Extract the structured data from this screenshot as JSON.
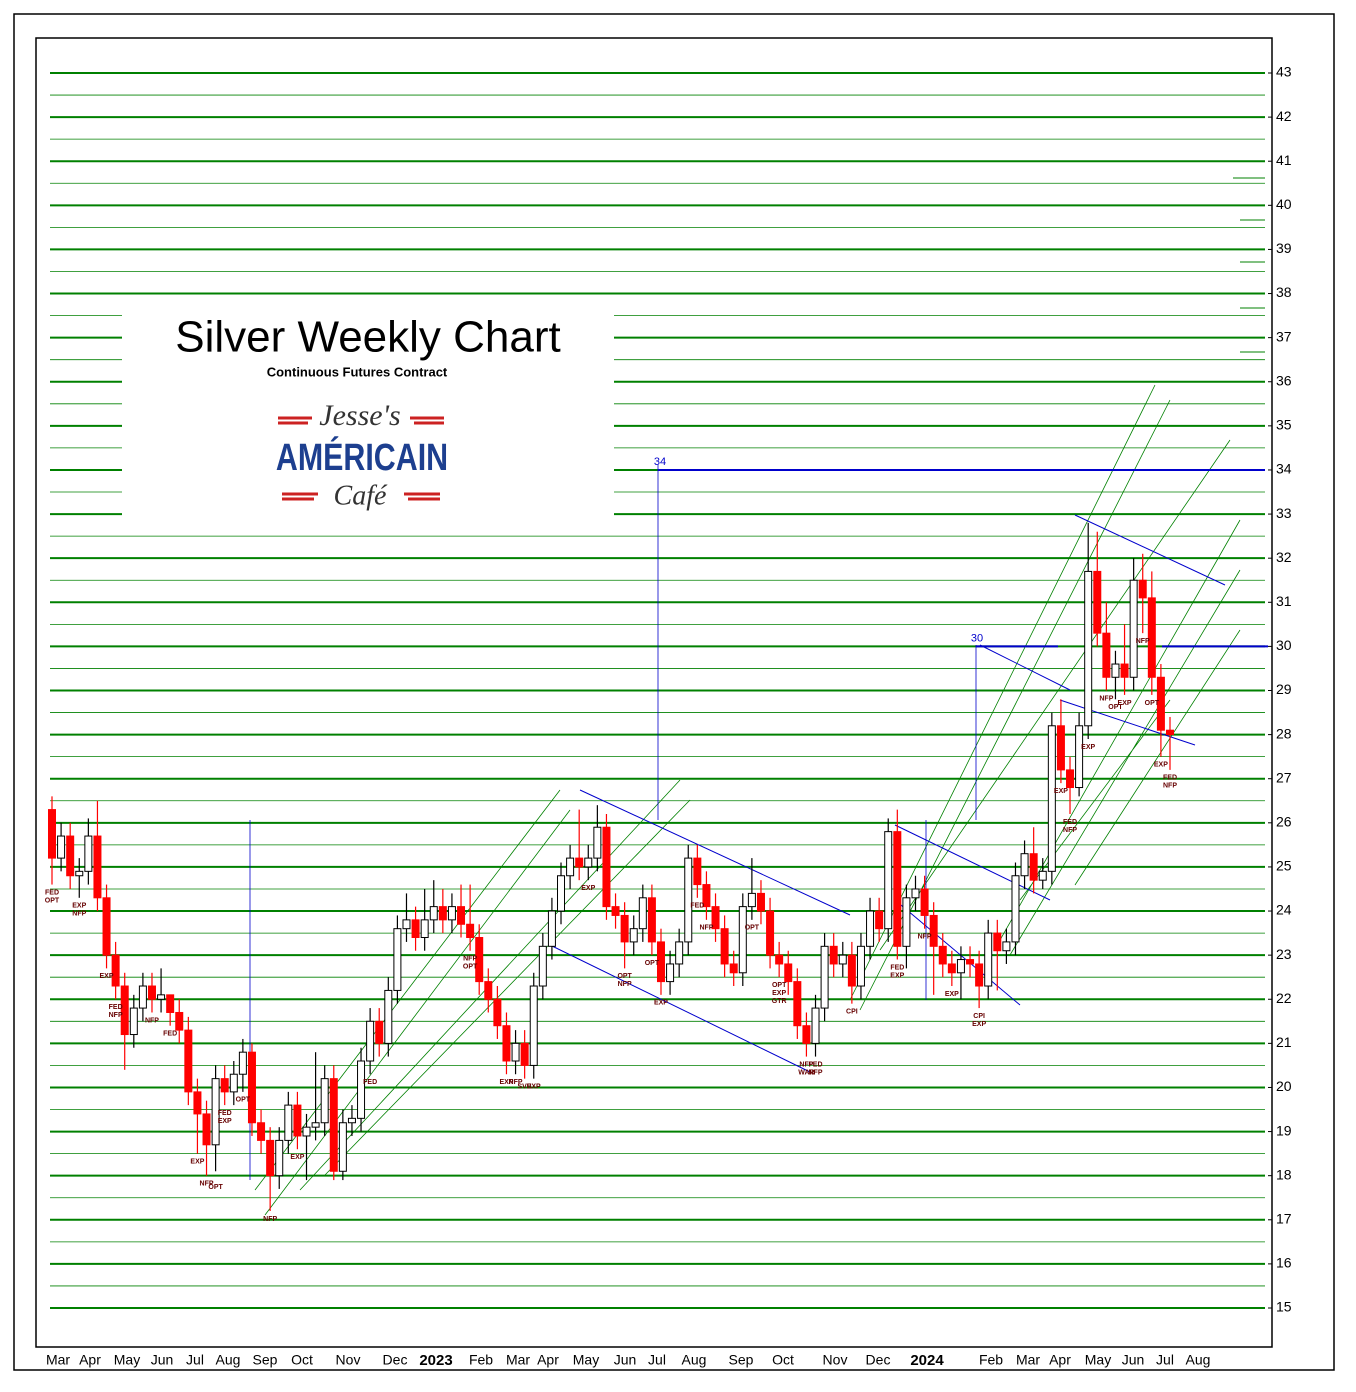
{
  "chart_data": {
    "type": "candlestick",
    "title": "Silver Weekly Chart",
    "subtitle": "Continuous Futures Contract",
    "logo": [
      "Jesse's",
      "AMÉRICAIN",
      "Café"
    ],
    "x_labels": [
      "Mar",
      "Apr",
      "May",
      "Jun",
      "Jul",
      "Aug",
      "Sep",
      "Oct",
      "Nov",
      "Dec",
      "2023",
      "Feb",
      "Mar",
      "Apr",
      "May",
      "Jun",
      "Jul",
      "Aug",
      "Sep",
      "Oct",
      "Nov",
      "Dec",
      "2024",
      "Feb",
      "Mar",
      "Apr",
      "May",
      "Jun",
      "Jul",
      "Aug"
    ],
    "ylim": [
      15,
      43
    ],
    "yticks": [
      15,
      16,
      17,
      18,
      19,
      20,
      21,
      22,
      23,
      24,
      25,
      26,
      27,
      28,
      29,
      30,
      31,
      32,
      33,
      34,
      35,
      36,
      37,
      38,
      39,
      40,
      41,
      42,
      43
    ],
    "grid": true,
    "grid_color": "#008000",
    "up_color": "#ffffff",
    "down_color": "#ff0000",
    "levels": [
      34,
      30
    ],
    "level_color": "#0000cc",
    "open": [
      26.3,
      25.2,
      25.7,
      24.8,
      24.9,
      25.7,
      24.3,
      23.0,
      22.3,
      21.2,
      21.8,
      22.3,
      22.0,
      22.1,
      21.7,
      21.3,
      19.9,
      19.4,
      18.7,
      20.2,
      19.9,
      20.3,
      20.8,
      19.2,
      18.8,
      18.0,
      18.8,
      19.6,
      18.9,
      19.1,
      19.2,
      20.2,
      18.1,
      19.2,
      19.3,
      20.6,
      21.5,
      21.0,
      22.2,
      23.6,
      23.8,
      23.4,
      23.8,
      24.1,
      23.8,
      24.1,
      23.7,
      23.4,
      22.4,
      22.0,
      21.4,
      20.6,
      21.0,
      20.5,
      22.3,
      23.2,
      24.0,
      24.8,
      25.2,
      25.0,
      25.2,
      25.9,
      24.1,
      23.9,
      23.3,
      23.6,
      24.3,
      23.3,
      22.4,
      22.8,
      23.3,
      25.2,
      24.6,
      24.1,
      23.6,
      22.8,
      22.6,
      24.1,
      24.4,
      24.0,
      23.0,
      22.8,
      22.4,
      21.4,
      21.0,
      21.8,
      23.2,
      22.8,
      23.0,
      22.3,
      23.2,
      24.0,
      23.6,
      25.8,
      23.2,
      24.3,
      24.5,
      23.9,
      23.2,
      22.8,
      22.6,
      22.9,
      22.8,
      22.3,
      23.5,
      23.1,
      23.3,
      24.8,
      25.3,
      24.7,
      24.9,
      28.2,
      27.2,
      26.8,
      28.2,
      31.7,
      30.3,
      29.3,
      29.6,
      29.3,
      31.5,
      31.1,
      29.3,
      28.1
    ],
    "high": [
      26.6,
      26.0,
      26.0,
      25.2,
      26.1,
      26.5,
      24.6,
      23.3,
      22.6,
      22.1,
      22.6,
      22.6,
      22.7,
      22.1,
      22.0,
      21.6,
      20.2,
      19.7,
      20.5,
      20.5,
      20.6,
      21.1,
      21.0,
      19.5,
      19.1,
      19.1,
      19.9,
      19.9,
      19.4,
      20.8,
      20.5,
      20.5,
      19.5,
      19.6,
      20.9,
      21.8,
      21.8,
      22.5,
      23.9,
      24.4,
      24.1,
      24.5,
      24.7,
      24.5,
      24.4,
      24.6,
      24.6,
      23.7,
      22.7,
      22.3,
      21.7,
      21.3,
      21.3,
      22.6,
      23.5,
      24.3,
      25.1,
      25.5,
      26.3,
      25.5,
      26.4,
      26.2,
      24.4,
      24.2,
      23.9,
      24.6,
      24.6,
      23.6,
      23.1,
      23.6,
      25.5,
      25.5,
      24.9,
      24.4,
      23.9,
      23.1,
      24.4,
      25.2,
      24.7,
      24.3,
      23.3,
      23.1,
      22.7,
      21.7,
      22.1,
      23.5,
      23.5,
      23.3,
      23.3,
      23.5,
      24.3,
      24.3,
      26.1,
      26.3,
      24.6,
      24.8,
      24.8,
      24.2,
      23.5,
      23.1,
      23.2,
      23.2,
      23.1,
      23.8,
      23.8,
      23.6,
      25.1,
      25.6,
      25.9,
      25.2,
      28.5,
      28.8,
      27.5,
      28.5,
      32.8,
      32.6,
      31.0,
      29.9,
      30.5,
      32.0,
      32.1,
      31.7,
      29.6,
      28.4
    ],
    "low": [
      24.6,
      24.9,
      24.5,
      24.3,
      24.6,
      24.0,
      22.7,
      22.0,
      20.4,
      20.9,
      21.5,
      21.7,
      21.7,
      21.4,
      21.0,
      19.6,
      18.5,
      18.0,
      18.1,
      19.6,
      19.6,
      19.9,
      18.9,
      18.5,
      17.2,
      17.7,
      18.5,
      18.6,
      17.9,
      18.8,
      18.9,
      17.9,
      17.9,
      18.9,
      19.0,
      20.3,
      20.7,
      20.7,
      21.9,
      23.3,
      23.1,
      23.1,
      23.5,
      23.5,
      23.5,
      23.4,
      23.1,
      22.1,
      21.7,
      21.1,
      20.3,
      20.3,
      20.2,
      20.2,
      22.0,
      22.9,
      23.7,
      24.5,
      24.7,
      24.7,
      24.9,
      23.8,
      23.6,
      22.7,
      23.0,
      23.3,
      23.0,
      22.1,
      22.1,
      22.5,
      23.0,
      24.3,
      23.8,
      23.3,
      22.5,
      22.3,
      22.3,
      23.8,
      23.7,
      22.7,
      22.5,
      22.1,
      21.1,
      20.7,
      20.7,
      21.5,
      22.5,
      22.5,
      21.9,
      22.0,
      22.9,
      23.3,
      23.3,
      22.9,
      22.7,
      24.0,
      23.6,
      22.1,
      22.5,
      22.3,
      22.0,
      22.5,
      21.8,
      22.0,
      22.2,
      22.8,
      23.0,
      24.5,
      24.4,
      24.5,
      24.6,
      26.9,
      26.2,
      26.6,
      27.9,
      30.0,
      29.0,
      28.8,
      28.9,
      29.0,
      30.3,
      28.9,
      27.5,
      27.2
    ],
    "close": [
      25.2,
      25.7,
      24.8,
      24.9,
      25.7,
      24.3,
      23.0,
      22.3,
      21.2,
      21.8,
      22.3,
      22.0,
      22.1,
      21.7,
      21.3,
      19.9,
      19.4,
      18.7,
      20.2,
      19.9,
      20.3,
      20.8,
      19.2,
      18.8,
      18.0,
      18.8,
      19.6,
      18.9,
      19.1,
      19.2,
      20.2,
      18.1,
      19.2,
      19.3,
      20.6,
      21.5,
      21.0,
      22.2,
      23.6,
      23.8,
      23.4,
      23.8,
      24.1,
      23.8,
      24.1,
      23.7,
      23.4,
      22.4,
      22.0,
      21.4,
      20.6,
      21.0,
      20.5,
      22.3,
      23.2,
      24.0,
      24.8,
      25.2,
      25.0,
      25.2,
      25.9,
      24.1,
      23.9,
      23.3,
      23.6,
      24.3,
      23.3,
      22.4,
      22.8,
      23.3,
      25.2,
      24.6,
      24.1,
      23.6,
      22.8,
      22.6,
      24.1,
      24.4,
      24.0,
      23.0,
      22.8,
      22.4,
      21.4,
      21.0,
      21.8,
      23.2,
      22.8,
      23.0,
      22.3,
      23.2,
      24.0,
      23.6,
      25.8,
      23.2,
      24.3,
      24.5,
      23.9,
      23.2,
      22.8,
      22.6,
      22.9,
      22.8,
      22.3,
      23.5,
      23.1,
      23.3,
      24.8,
      25.3,
      24.7,
      24.9,
      28.2,
      27.2,
      26.8,
      28.2,
      31.7,
      30.3,
      29.3,
      29.6,
      29.3,
      31.5,
      31.1,
      29.3,
      28.1,
      28.0
    ],
    "annotations": [
      "FED",
      "OPT",
      "EXP",
      "NFP",
      "EXP",
      "FED",
      "NFP",
      "NFP",
      "FED",
      "EXP",
      "NFP",
      "OPT",
      "FED",
      "EXP",
      "OPT",
      "NFP",
      "EXP",
      "FED",
      "NFP",
      "OPT",
      "EXP",
      "NFP",
      "SVB",
      "EXP",
      "EXP",
      "OPT",
      "NFP",
      "OPT",
      "EXP",
      "FED",
      "NFP",
      "OPT",
      "OPT",
      "EXP",
      "GTR",
      "FED",
      "NFP",
      "WAR",
      "NFP",
      "CPI",
      "FED",
      "EXP",
      "NFP",
      "EXP",
      "CPI",
      "EXP",
      "EXP",
      "FED",
      "NFP",
      "EXP",
      "NFP",
      "OPT",
      "EXP",
      "NFP",
      "OPT",
      "EXP",
      "FED",
      "NFP"
    ]
  }
}
